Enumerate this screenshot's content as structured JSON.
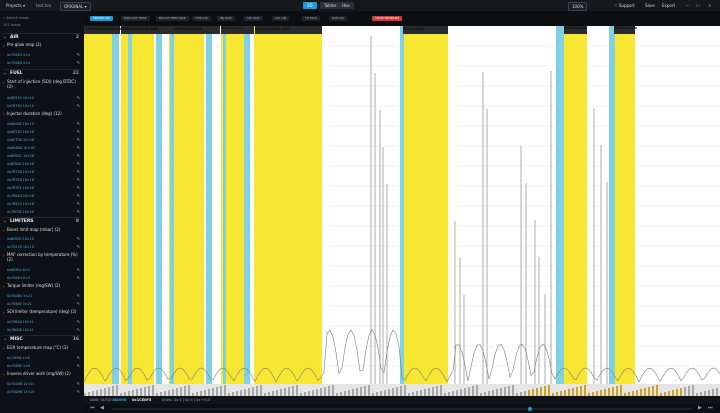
{
  "topbar": {
    "projects": "Projects",
    "title": "test.bin",
    "file_mode": "ORIGINAL",
    "view_tabs": [
      "2D",
      "Tables",
      "Hex"
    ],
    "zoom": "100%",
    "support": "Support",
    "save": "Save",
    "export": "Export"
  },
  "sidebar": {
    "search_placeholder": "Search maps",
    "map_count": "102 maps",
    "categories": [
      {
        "label": "AIR",
        "count": "2"
      },
      {
        "label": "FUEL",
        "count": "22"
      },
      {
        "label": "LIMITERS",
        "count": "8"
      },
      {
        "label": "MISC",
        "count": "16"
      }
    ],
    "maps": {
      "preglow": "Pre-glow map (2)",
      "soi": "Start of injection (SOI) (deg BTDC) (2)",
      "inj_dur": "Injector duration (deg) (12)",
      "boost": "Boost limit map (mbar) (2)",
      "maf": "MAF correction by temperature (%) (2)",
      "torque": "Torque limiter (mg/SW) (2)",
      "soi_lim": "SOI limiter (temperature) (deg) (2)",
      "egr": "EGR temperature map (°C) (2)",
      "driver": "Inverse driver wish (mg/SW) (2)"
    },
    "addresses": [
      "0x7D0E4 4×4",
      "0x7D0E8 4×4",
      "0x6D1F4 10×10",
      "0x7B794 10×10",
      "0x6A58E 10×15",
      "0x6E578 10×16",
      "0x6E7D6 10×16",
      "0x6EAD6 10×16",
      "0x6EB5C 10×16",
      "0x6F8A0 10×16",
      "0x7B758 10×16",
      "0x7B7E8 10×16",
      "0x7B7F4 10×16",
      "0x7B8A4 10×16",
      "0x7B914 10×16",
      "0x7BF28 10×16",
      "0x6EB92 10×10",
      "0x7D1F8 10×10",
      "0x6E8B4 8×5",
      "0x7D0E4 8×5",
      "0x7D0B4 5×21",
      "0x7E6BE 5×21",
      "0x79B26 10×11",
      "0x7B006 10×11",
      "0x74E9A 1×8",
      "0x7D80E 1×8",
      "0x7D09B 12×15",
      "0x7D09B 12×15"
    ]
  },
  "chips": [
    "SMOKE LIM",
    "EGR/VNT TEMP",
    "BOOST PRES MAP",
    "TORQUE",
    "INJ DUR",
    "SOI MAP",
    "SOI LIM",
    "TQ MAX",
    "RAM INJ",
    "CODE PROBLEM"
  ],
  "chart_labels": [
    "UNRECOGNISED MAP",
    "UNRECOGNISED MAP",
    "UNRECOGNISED",
    "MAF correction",
    "Inverse driver wish",
    "Driver wish",
    "UNRECOGNISED",
    "UNRECOGNISED"
  ],
  "statusbar": {
    "addr_label": "Addr: 0x7CE06",
    "value": "1866D",
    "hex": "0x1CE0F5",
    "info": "8 bits: 0x  4  |  0x  4  |  0x  +0.0"
  },
  "colors": {
    "accent": "#1e9bd7",
    "highlight": "#f7e733",
    "cyan": "#7fd0e0",
    "danger": "#d23a3a"
  }
}
